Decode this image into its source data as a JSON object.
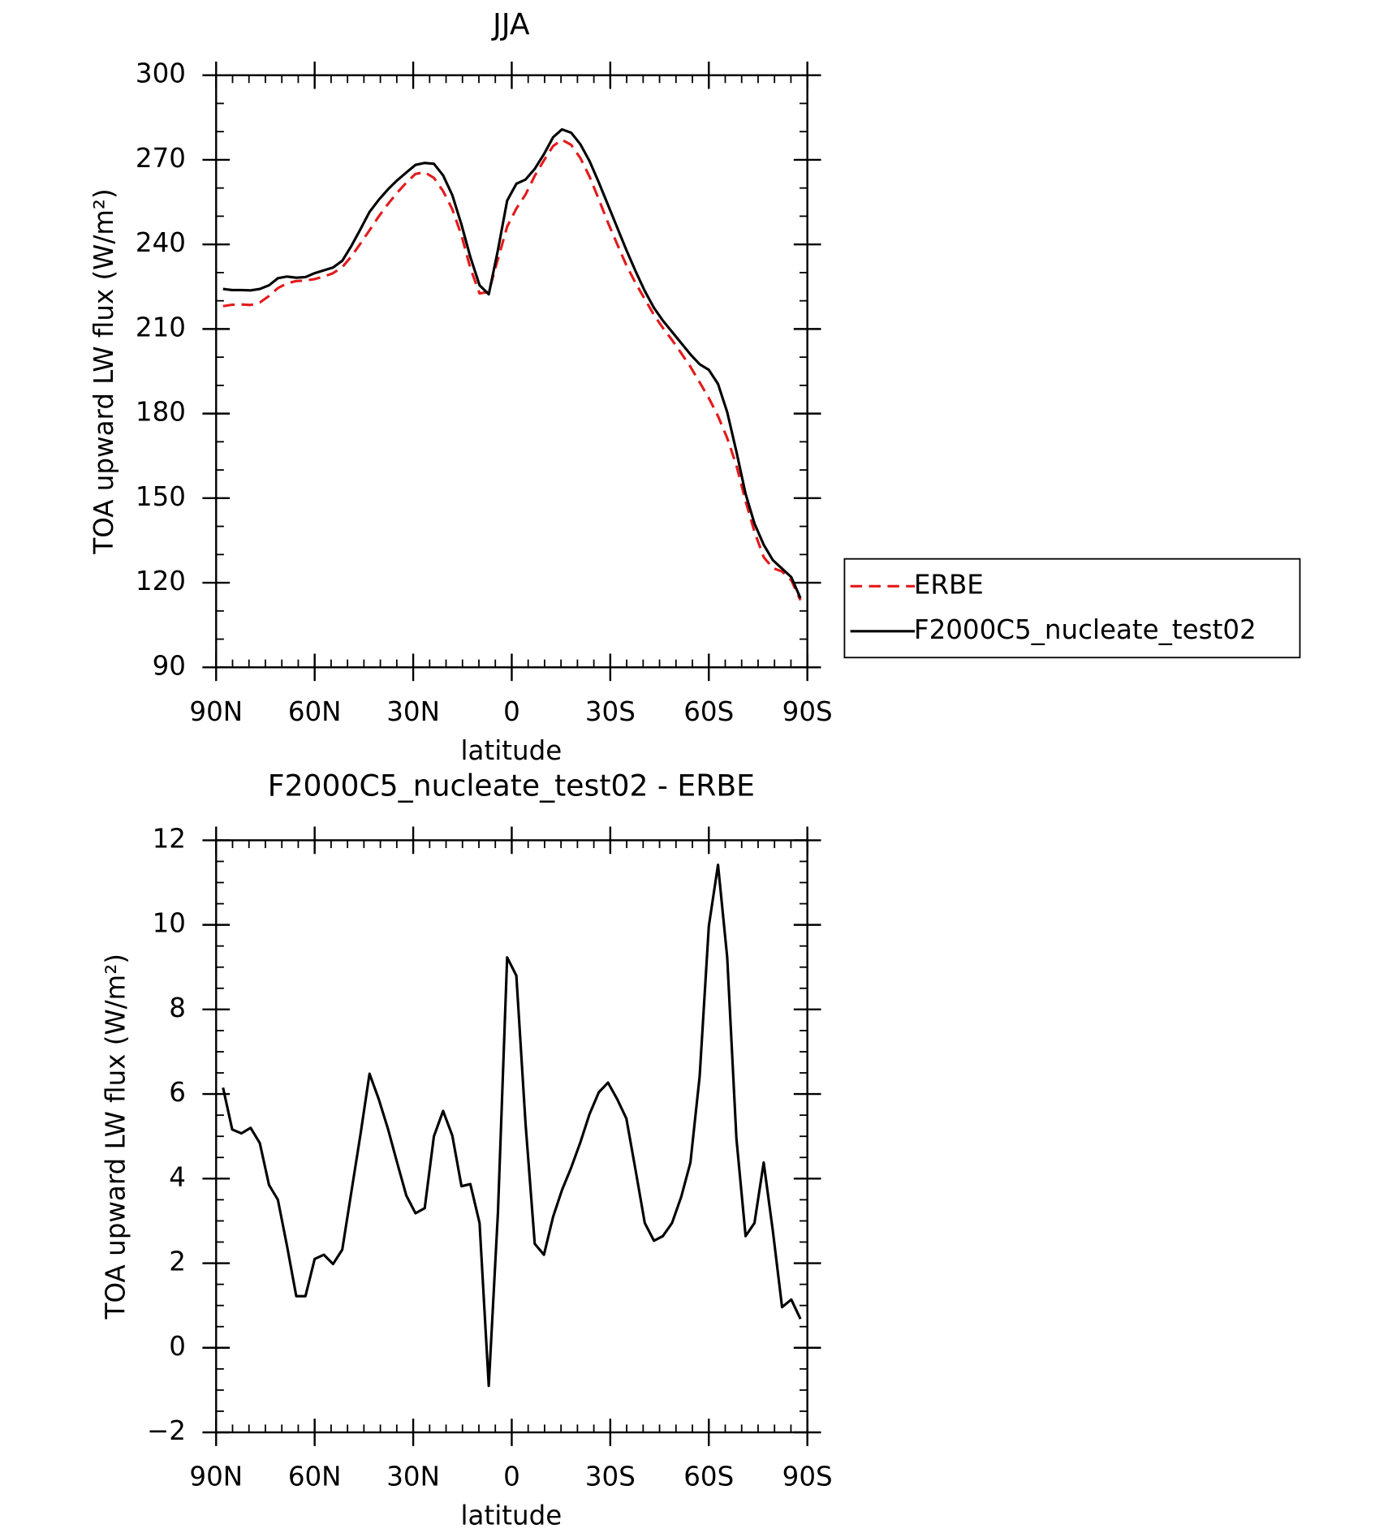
{
  "chart_data": [
    {
      "type": "line",
      "title": "JJA",
      "xlabel": "latitude",
      "ylabel": "TOA upward LW flux (W/m²)",
      "x": [
        87.9,
        85.1,
        82.3,
        79.5,
        76.7,
        73.9,
        71.2,
        68.4,
        65.6,
        62.8,
        60.0,
        57.2,
        54.4,
        51.6,
        48.8,
        46.0,
        43.3,
        40.5,
        37.7,
        34.9,
        32.1,
        29.3,
        26.5,
        23.7,
        20.9,
        18.1,
        15.3,
        12.6,
        9.8,
        7.0,
        4.2,
        1.4,
        -1.4,
        -4.2,
        -7.0,
        -9.8,
        -12.6,
        -15.3,
        -18.1,
        -20.9,
        -23.7,
        -26.5,
        -29.3,
        -32.1,
        -34.9,
        -37.7,
        -40.5,
        -43.3,
        -46.0,
        -48.8,
        -51.6,
        -54.4,
        -57.2,
        -60.0,
        -62.8,
        -65.6,
        -68.4,
        -71.2,
        -73.9,
        -76.7,
        -79.5,
        -82.3,
        -85.1,
        -87.9
      ],
      "series": [
        {
          "name": "ERBE",
          "color": "#e31a1c",
          "dash": true,
          "values": [
            218.1,
            218.6,
            218.7,
            218.5,
            219.4,
            221.7,
            224.5,
            226.2,
            227.0,
            227.2,
            227.7,
            228.6,
            229.8,
            231.9,
            235.8,
            240.4,
            245.0,
            249.9,
            254.3,
            258.3,
            261.9,
            265.0,
            265.6,
            263.6,
            258.9,
            252.5,
            243.2,
            231.6,
            222.6,
            223.2,
            234.8,
            246.3,
            252.7,
            257.7,
            264.3,
            269.8,
            274.9,
            277.1,
            275.3,
            270.6,
            264.0,
            256.0,
            247.7,
            240.1,
            232.6,
            226.3,
            220.6,
            215.0,
            210.4,
            206.1,
            201.4,
            196.6,
            191.1,
            185.5,
            179.1,
            171.3,
            161.6,
            148.9,
            138.1,
            129.1,
            125.2,
            124.0,
            120.9,
            113.8
          ]
        },
        {
          "name": "F2000C5_nucleate_test02",
          "color": "#000000",
          "dash": false,
          "values": [
            224.2,
            223.8,
            223.8,
            223.7,
            224.2,
            225.5,
            228.0,
            228.6,
            228.2,
            228.4,
            229.8,
            230.8,
            231.8,
            234.2,
            239.5,
            245.5,
            251.5,
            255.8,
            259.5,
            262.7,
            265.5,
            268.2,
            268.9,
            268.6,
            264.5,
            257.5,
            247.0,
            235.5,
            225.5,
            222.3,
            238.0,
            255.5,
            261.5,
            263.0,
            266.8,
            272.0,
            278.0,
            280.8,
            279.6,
            275.5,
            269.5,
            262.0,
            254.0,
            246.0,
            238.0,
            230.5,
            223.5,
            217.5,
            213.0,
            209.0,
            205.0,
            201.0,
            197.5,
            195.5,
            190.5,
            180.5,
            166.5,
            151.5,
            141.0,
            133.5,
            128.0,
            125.0,
            122.0,
            114.5
          ]
        }
      ],
      "xlim": [
        90,
        -90
      ],
      "xticks": [
        {
          "value": 90,
          "label": "90N"
        },
        {
          "value": 60,
          "label": "60N"
        },
        {
          "value": 30,
          "label": "30N"
        },
        0,
        {
          "value": -30,
          "label": "30S"
        },
        {
          "value": -60,
          "label": "60S"
        },
        {
          "value": -90,
          "label": "90S"
        }
      ],
      "xminor_step": 5,
      "ylim": [
        90,
        300
      ],
      "yticks": [
        90,
        120,
        150,
        180,
        210,
        240,
        270,
        300
      ],
      "yminor_step": 10,
      "legend": "right"
    },
    {
      "type": "line",
      "title": "F2000C5_nucleate_test02 - ERBE",
      "xlabel": "latitude",
      "ylabel": "TOA upward LW flux (W/m²)",
      "x": [
        87.9,
        85.1,
        82.3,
        79.5,
        76.7,
        73.9,
        71.2,
        68.4,
        65.6,
        62.8,
        60.0,
        57.2,
        54.4,
        51.6,
        48.8,
        46.0,
        43.3,
        40.5,
        37.7,
        34.9,
        32.1,
        29.3,
        26.5,
        23.7,
        20.9,
        18.1,
        15.3,
        12.6,
        9.8,
        7.0,
        4.2,
        1.4,
        -1.4,
        -4.2,
        -7.0,
        -9.8,
        -12.6,
        -15.3,
        -18.1,
        -20.9,
        -23.7,
        -26.5,
        -29.3,
        -32.1,
        -34.9,
        -37.7,
        -40.5,
        -43.3,
        -46.0,
        -48.8,
        -51.6,
        -54.4,
        -57.2,
        -60.0,
        -62.8,
        -65.6,
        -68.4,
        -71.2,
        -73.9,
        -76.7,
        -79.5,
        -82.3,
        -85.1,
        -87.9
      ],
      "series": [
        {
          "color": "#000000",
          "dash": false,
          "values": [
            6.15,
            5.16,
            5.07,
            5.2,
            4.84,
            3.85,
            3.5,
            2.4,
            1.22,
            1.22,
            2.1,
            2.2,
            1.98,
            2.32,
            3.7,
            5.07,
            6.48,
            5.88,
            5.18,
            4.38,
            3.6,
            3.18,
            3.3,
            5.0,
            5.6,
            5.02,
            3.82,
            3.87,
            2.95,
            -0.9,
            3.2,
            9.23,
            8.8,
            5.3,
            2.46,
            2.2,
            3.1,
            3.73,
            4.26,
            4.86,
            5.53,
            6.04,
            6.27,
            5.88,
            5.42,
            4.2,
            2.95,
            2.53,
            2.64,
            2.95,
            3.57,
            4.38,
            6.41,
            9.97,
            11.42,
            9.23,
            4.95,
            2.64,
            2.95,
            4.38,
            2.76,
            0.96,
            1.14,
            0.68
          ]
        }
      ],
      "xlim": [
        90,
        -90
      ],
      "xticks": [
        {
          "value": 90,
          "label": "90N"
        },
        {
          "value": 60,
          "label": "60N"
        },
        {
          "value": 30,
          "label": "30N"
        },
        0,
        {
          "value": -30,
          "label": "30S"
        },
        {
          "value": -60,
          "label": "60S"
        },
        {
          "value": -90,
          "label": "90S"
        }
      ],
      "xminor_step": 5,
      "ylim": [
        -2,
        12
      ],
      "yticks": [
        {
          "value": -2,
          "label": "−2"
        },
        0,
        2,
        4,
        6,
        8,
        10,
        12
      ],
      "yminor_step": 0.5
    }
  ]
}
